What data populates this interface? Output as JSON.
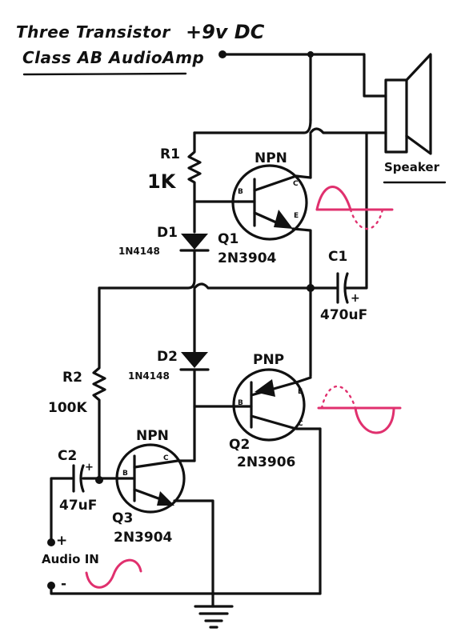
{
  "title": {
    "line1": "Three Transistor",
    "line2": "Class AB AudioAmp",
    "supply": "+9v DC"
  },
  "components": {
    "speaker": {
      "label": "Speaker"
    },
    "r1": {
      "ref": "R1",
      "value": "1K"
    },
    "r2": {
      "ref": "R2",
      "value": "100K"
    },
    "d1": {
      "ref": "D1",
      "part": "1N4148"
    },
    "d2": {
      "ref": "D2",
      "part": "1N4148"
    },
    "q1": {
      "ref": "Q1",
      "type": "NPN",
      "part": "2N3904"
    },
    "q2": {
      "ref": "Q2",
      "type": "PNP",
      "part": "2N3906"
    },
    "q3": {
      "ref": "Q3",
      "type": "NPN",
      "part": "2N3904"
    },
    "c1": {
      "ref": "C1",
      "value": "470uF"
    },
    "c2": {
      "ref": "C2",
      "value": "47uF"
    }
  },
  "pins": {
    "base": "B",
    "collector": "C",
    "emitter": "E",
    "plus": "+"
  },
  "input": {
    "label": "Audio IN",
    "plus": "+",
    "minus": "-"
  },
  "colors": {
    "ink": "#111111",
    "waveform": "#e0306e",
    "board": "#ffffff"
  }
}
